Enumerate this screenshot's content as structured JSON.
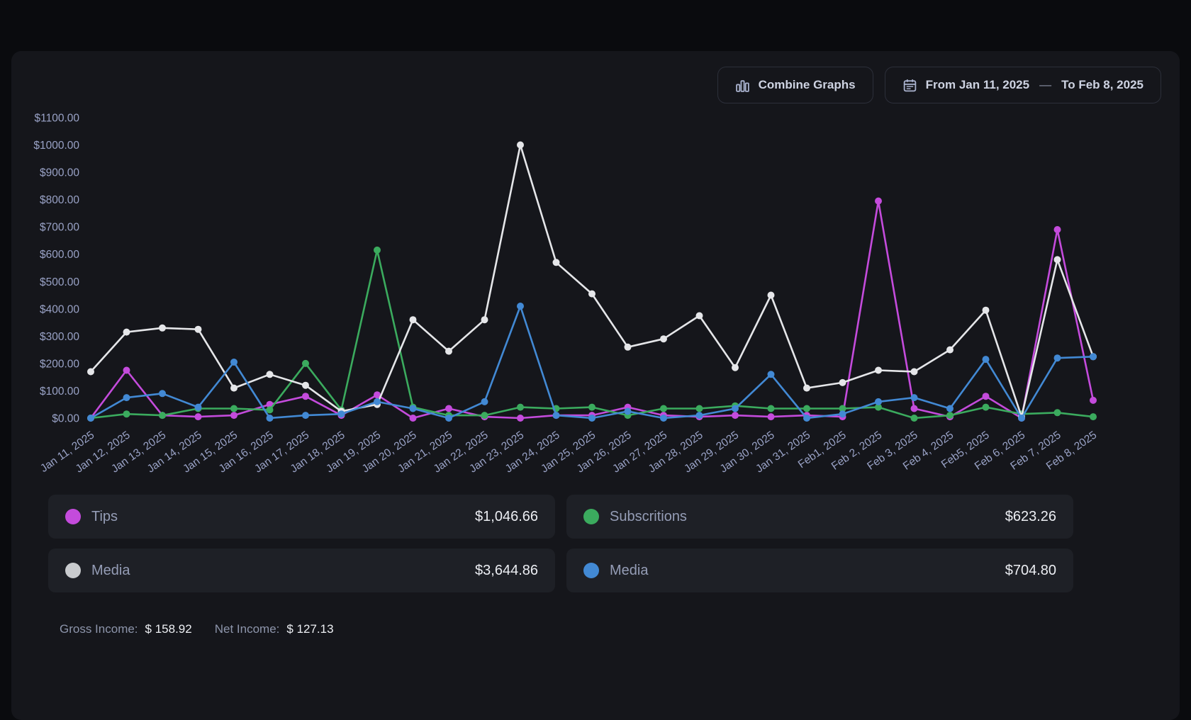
{
  "toolbar": {
    "combine_graphs_label": "Combine Graphs",
    "date_from_label": "From Jan 11, 2025",
    "date_separator": "—",
    "date_to_label": "To Feb 8, 2025"
  },
  "legend": [
    {
      "label": "Tips",
      "value": "$1,046.66",
      "color": "#c44bdc"
    },
    {
      "label": "Subscritions",
      "value": "$623.26",
      "color": "#3bab5e"
    },
    {
      "label": "Media",
      "value": "$3,644.86",
      "color": "#c9cbce"
    },
    {
      "label": "Media",
      "value": "$704.80",
      "color": "#4289d4"
    }
  ],
  "footer": {
    "gross_income_label": "Gross Income:",
    "gross_income_value": "$ 158.92",
    "net_income_label": "Net Income:",
    "net_income_value": "$ 127.13"
  },
  "chart_data": {
    "type": "line",
    "x": [
      "Jan 11, 2025",
      "Jan 12, 2025",
      "Jan 13, 2025",
      "Jan 14, 2025",
      "Jan 15, 2025",
      "Jan 16, 2025",
      "Jan 17, 2025",
      "Jan 18, 2025",
      "Jan 19, 2025",
      "Jan 20, 2025",
      "Jan 21, 2025",
      "Jan 22, 2025",
      "Jan 23, 2025",
      "Jan 24, 2025",
      "Jan 25, 2025",
      "Jan 26, 2025",
      "Jan 27, 2025",
      "Jan 28, 2025",
      "Jan 29, 2025",
      "Jan 30, 2025",
      "Jan 31, 2025",
      "Feb1, 2025",
      "Feb 2, 2025",
      "Feb 3, 2025",
      "Feb 4, 2025",
      "Feb5, 2025",
      "Feb 6, 2025",
      "Feb 7, 2025",
      "Feb 8, 2025"
    ],
    "series": [
      {
        "id": "tips",
        "name": "Tips",
        "color": "#c44bdc",
        "values": [
          0,
          175,
          10,
          5,
          10,
          50,
          80,
          10,
          85,
          0,
          35,
          5,
          0,
          10,
          10,
          40,
          10,
          5,
          10,
          5,
          10,
          5,
          795,
          35,
          5,
          80,
          0,
          690,
          65
        ]
      },
      {
        "id": "subscritions",
        "name": "Subscritions",
        "color": "#3bab5e",
        "values": [
          0,
          15,
          10,
          35,
          35,
          30,
          200,
          30,
          615,
          40,
          10,
          10,
          40,
          35,
          40,
          10,
          35,
          35,
          45,
          35,
          35,
          35,
          40,
          0,
          10,
          40,
          15,
          20,
          5
        ]
      },
      {
        "id": "media-white",
        "name": "Media",
        "color": "#e5e6e9",
        "values": [
          170,
          315,
          330,
          325,
          110,
          160,
          120,
          25,
          50,
          360,
          245,
          360,
          1000,
          570,
          455,
          260,
          290,
          375,
          185,
          450,
          110,
          130,
          175,
          170,
          250,
          395,
          5,
          580,
          225
        ]
      },
      {
        "id": "media-blue",
        "name": "Media",
        "color": "#4289d4",
        "values": [
          0,
          75,
          90,
          40,
          205,
          0,
          10,
          15,
          60,
          35,
          0,
          60,
          410,
          10,
          0,
          25,
          0,
          10,
          35,
          160,
          0,
          15,
          60,
          75,
          35,
          215,
          0,
          220,
          225
        ]
      }
    ],
    "ylim": [
      0,
      1100
    ],
    "ytick_step": 100,
    "ytick_format": "$%.2f",
    "grid": false,
    "legend_position": "bottom"
  }
}
